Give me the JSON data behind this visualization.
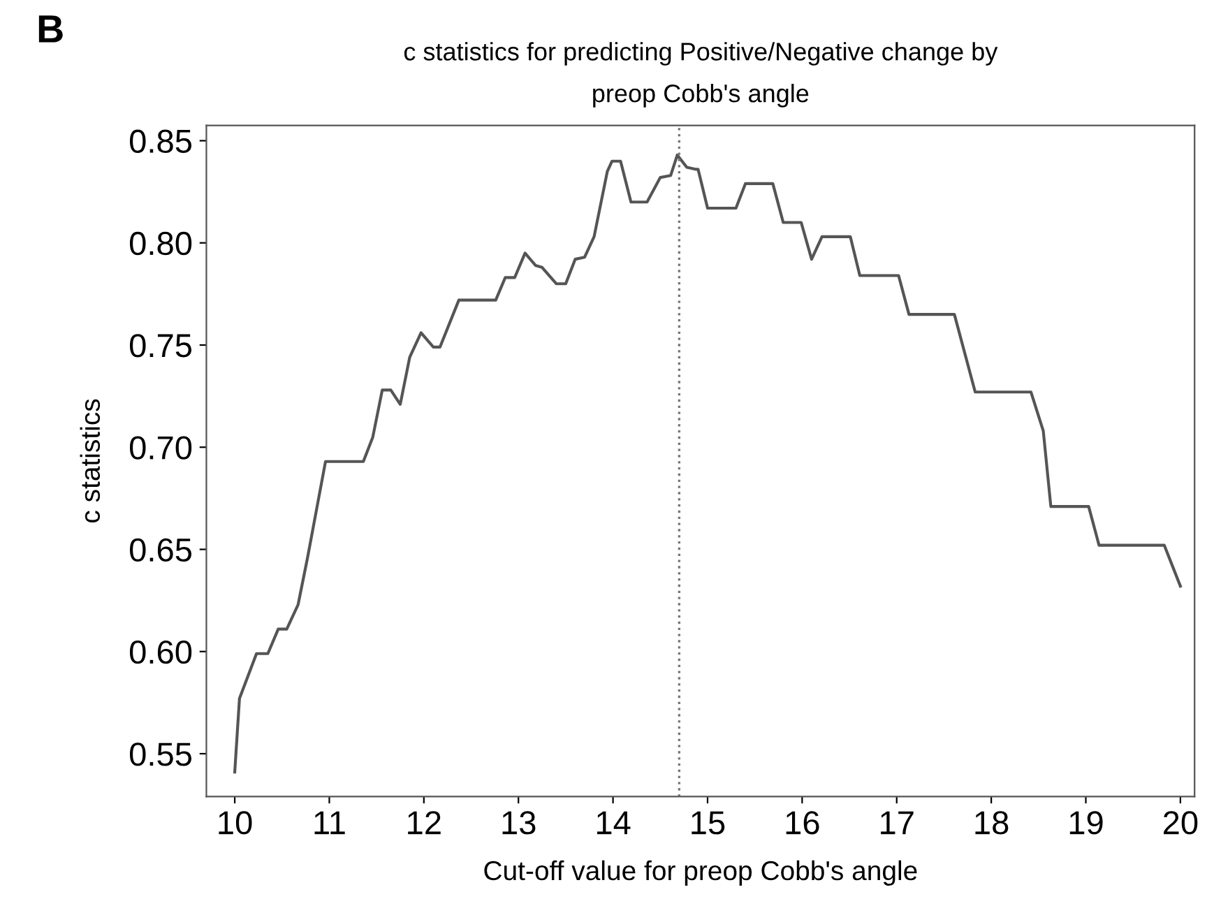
{
  "chart_data": {
    "type": "line",
    "title": "c statistics for predicting Positive/Negative change by\npreop Cobb's angle",
    "xlabel": "Cut-off value for preop Cobb's angle",
    "ylabel": "c statistics",
    "annotations": [
      "B"
    ],
    "series": [
      {
        "color": "#555555",
        "x": [
          10.0,
          10.05,
          10.23,
          10.35,
          10.46,
          10.55,
          10.67,
          10.77,
          10.96,
          11.36,
          11.46,
          11.56,
          11.65,
          11.75,
          11.85,
          11.97,
          12.1,
          12.17,
          12.37,
          12.76,
          12.86,
          12.96,
          13.07,
          13.18,
          13.25,
          13.4,
          13.5,
          13.6,
          13.7,
          13.8,
          13.94,
          13.99,
          14.08,
          14.19,
          14.36,
          14.5,
          14.61,
          14.68,
          14.78,
          14.88,
          14.9,
          15.0,
          15.3,
          15.4,
          15.69,
          15.8,
          15.99,
          16.1,
          16.21,
          16.51,
          16.61,
          17.02,
          17.13,
          17.61,
          17.83,
          18.42,
          18.55,
          18.63,
          19.03,
          19.14,
          19.83,
          20.0
        ],
        "values": [
          0.541,
          0.577,
          0.599,
          0.599,
          0.611,
          0.611,
          0.623,
          0.646,
          0.693,
          0.693,
          0.705,
          0.728,
          0.728,
          0.721,
          0.744,
          0.756,
          0.749,
          0.749,
          0.772,
          0.772,
          0.783,
          0.783,
          0.795,
          0.789,
          0.788,
          0.78,
          0.78,
          0.792,
          0.793,
          0.803,
          0.835,
          0.84,
          0.84,
          0.82,
          0.82,
          0.832,
          0.833,
          0.843,
          0.837,
          0.836,
          0.836,
          0.817,
          0.817,
          0.829,
          0.829,
          0.81,
          0.81,
          0.792,
          0.803,
          0.803,
          0.784,
          0.784,
          0.765,
          0.765,
          0.727,
          0.727,
          0.708,
          0.671,
          0.671,
          0.652,
          0.652,
          0.632
        ]
      }
    ],
    "xlim": [
      9.7,
      20.15
    ],
    "ylim": [
      0.529,
      0.8575
    ],
    "xticks": [
      10,
      11,
      12,
      13,
      14,
      15,
      16,
      17,
      18,
      19,
      20
    ],
    "yticks": [
      {
        "value": 0.55,
        "label": "0.55"
      },
      {
        "value": 0.6,
        "label": "0.60"
      },
      {
        "value": 0.65,
        "label": "0.65"
      },
      {
        "value": 0.7,
        "label": "0.70"
      },
      {
        "value": 0.75,
        "label": "0.75"
      },
      {
        "value": 0.8,
        "label": "0.80"
      },
      {
        "value": 0.85,
        "label": "0.85"
      }
    ],
    "ref_lines": [
      {
        "axis": "x",
        "value": 14.7,
        "color": "#777777",
        "line_style": "dotted"
      }
    ],
    "grid": false,
    "legend": false,
    "marker": "none",
    "line_style": "solid"
  }
}
